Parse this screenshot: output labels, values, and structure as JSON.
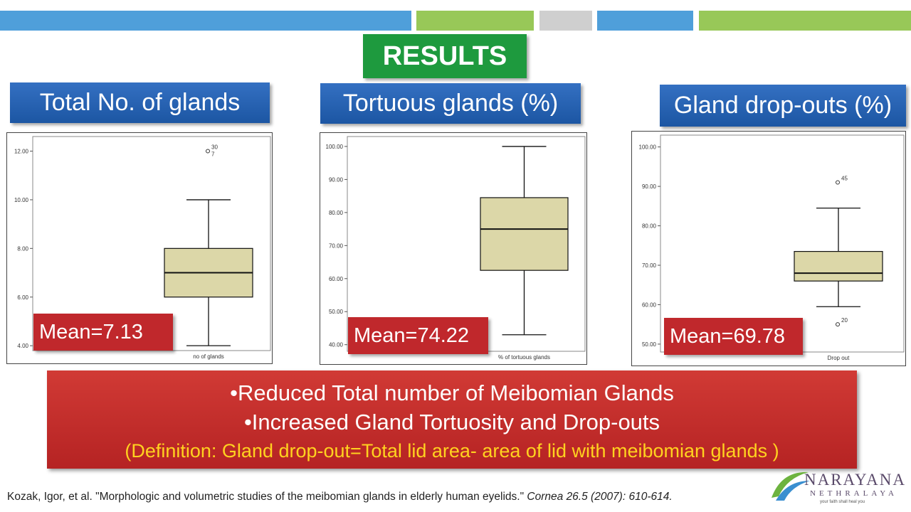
{
  "slide": {
    "title": "RESULTS",
    "colors": {
      "blue_bar": "#4f9fda",
      "green_bar": "#98c858",
      "grey_bar": "#cfcfcf",
      "header": "#1f5fb0",
      "title_bg": "#1e9a3e",
      "red": "#c53030",
      "box_fill": "#dcd7a8",
      "accent_text": "#ffd21f"
    },
    "summary": {
      "line1": "•Reduced Total number of Meibomian Glands",
      "line2": "•Increased Gland Tortuosity and Drop-outs",
      "line3": "(Definition: Gland drop-out=Total lid area- area of lid with meibomian glands )"
    },
    "citation": {
      "authors_title": "Kozak, Igor, et al. \"Morphologic and volumetric studies of the meibomian glands in elderly human eyelids.\"",
      "journal": "Cornea 26.5 (2007): 610-614."
    },
    "logo": {
      "name": "NARAYANA",
      "sub": "NETHRALAYA",
      "tagline": "your faith shall heal you"
    }
  },
  "panels": [
    {
      "header": "Total No. of glands",
      "mean": "Mean=7.13"
    },
    {
      "header": "Tortuous glands (%)",
      "mean": "Mean=74.22"
    },
    {
      "header": "Gland drop-outs (%)",
      "mean": "Mean=69.78"
    }
  ],
  "chart_data": [
    {
      "type": "boxplot",
      "xlabel": "no of glands",
      "ylim": [
        3.8,
        12.6
      ],
      "yticks": [
        4,
        6,
        8,
        10,
        12
      ],
      "ytick_labels": [
        "4.00",
        "6.00",
        "8.00",
        "10.00",
        "12.00"
      ],
      "box": {
        "whisker_low": 4,
        "q1": 6,
        "median": 7,
        "q3": 8,
        "whisker_high": 10
      },
      "outliers": [
        {
          "value": 12,
          "labels": [
            "30",
            "7"
          ]
        }
      ]
    },
    {
      "type": "boxplot",
      "xlabel": "% of tortuous glands",
      "ylim": [
        38,
        103
      ],
      "yticks": [
        40,
        50,
        60,
        70,
        80,
        90,
        100
      ],
      "ytick_labels": [
        "40.00",
        "50.00",
        "60.00",
        "70.00",
        "80.00",
        "90.00",
        "100.00"
      ],
      "box": {
        "whisker_low": 43,
        "q1": 62.5,
        "median": 75,
        "q3": 84.5,
        "whisker_high": 100
      },
      "outliers": []
    },
    {
      "type": "boxplot",
      "xlabel": "Drop out",
      "ylim": [
        48,
        103
      ],
      "yticks": [
        50,
        60,
        70,
        80,
        90,
        100
      ],
      "ytick_labels": [
        "50.00",
        "60.00",
        "70.00",
        "80.00",
        "90.00",
        "100.00"
      ],
      "box": {
        "whisker_low": 59.5,
        "q1": 66,
        "median": 68,
        "q3": 73.5,
        "whisker_high": 84.5
      },
      "outliers": [
        {
          "value": 91,
          "labels": [
            "45"
          ]
        },
        {
          "value": 55,
          "labels": [
            "20"
          ]
        }
      ]
    }
  ]
}
